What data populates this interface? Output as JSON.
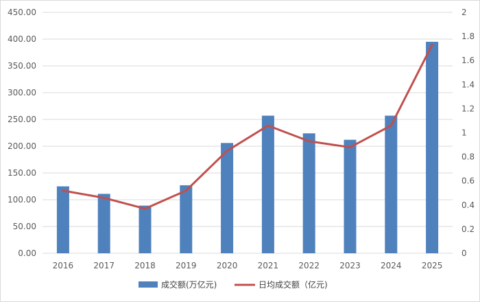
{
  "chart_data": {
    "type": "bar",
    "categories": [
      "2016",
      "2017",
      "2018",
      "2019",
      "2020",
      "2021",
      "2022",
      "2023",
      "2024",
      "2025"
    ],
    "series": [
      {
        "name": "成交额(万亿元)",
        "type": "bar",
        "axis": "left",
        "color": "#4f81bd",
        "values": [
          125,
          111,
          89,
          127,
          206,
          257,
          224,
          212,
          257,
          395
        ]
      },
      {
        "name": "日均成交额（亿元)",
        "type": "line",
        "axis": "right",
        "color": "#c0504d",
        "values": [
          0.52,
          0.46,
          0.37,
          0.52,
          0.85,
          1.06,
          0.93,
          0.88,
          1.06,
          1.73
        ]
      }
    ],
    "y_left": {
      "ylim": [
        0,
        450
      ],
      "ticks": [
        "0.00",
        "50.00",
        "100.00",
        "150.00",
        "200.00",
        "250.00",
        "300.00",
        "350.00",
        "400.00",
        "450.00"
      ]
    },
    "y_right": {
      "ylim": [
        0,
        2
      ],
      "ticks": [
        "0",
        "0.2",
        "0.4",
        "0.6",
        "0.8",
        "1",
        "1.2",
        "1.4",
        "1.6",
        "1.8",
        "2"
      ]
    },
    "grid": true,
    "legend": "bottom-center"
  }
}
